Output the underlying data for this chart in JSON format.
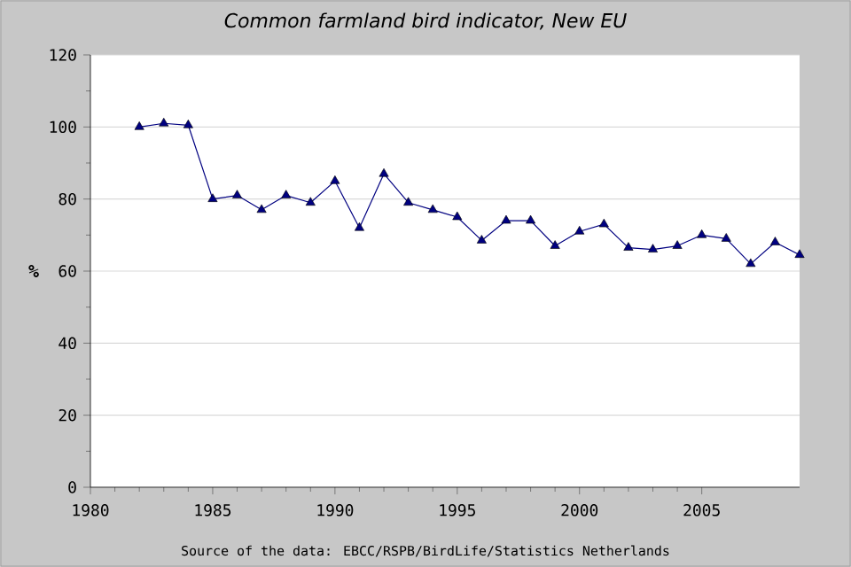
{
  "chart_data": {
    "type": "line",
    "title": "Common farmland bird indicator, New EU",
    "ylabel": "%",
    "annotations": [
      "Source of the data: EBCC/RSPB/BirdLife/Statistics Netherlands"
    ],
    "x": [
      1982,
      1983,
      1984,
      1985,
      1986,
      1987,
      1988,
      1989,
      1990,
      1991,
      1992,
      1993,
      1994,
      1995,
      1996,
      1997,
      1998,
      1999,
      2000,
      2001,
      2002,
      2003,
      2004,
      2005,
      2006,
      2007,
      2008,
      2009
    ],
    "series": [
      {
        "color": "#000080",
        "values": [
          100,
          101,
          100.5,
          80,
          81,
          77,
          81,
          79,
          85,
          72,
          87,
          79,
          77,
          75,
          68.5,
          74,
          74,
          67,
          71,
          73,
          66.5,
          66,
          67,
          70,
          69,
          62,
          68,
          64.5
        ]
      }
    ],
    "xlim": [
      1980,
      2009
    ],
    "ylim": [
      0,
      120
    ],
    "xticks": [
      1980,
      1985,
      1990,
      1995,
      2000,
      2005
    ],
    "yticks": [
      0,
      20,
      40,
      60,
      80,
      100,
      120
    ],
    "grid": "y",
    "marker": "triangle",
    "line_style": "solid"
  }
}
